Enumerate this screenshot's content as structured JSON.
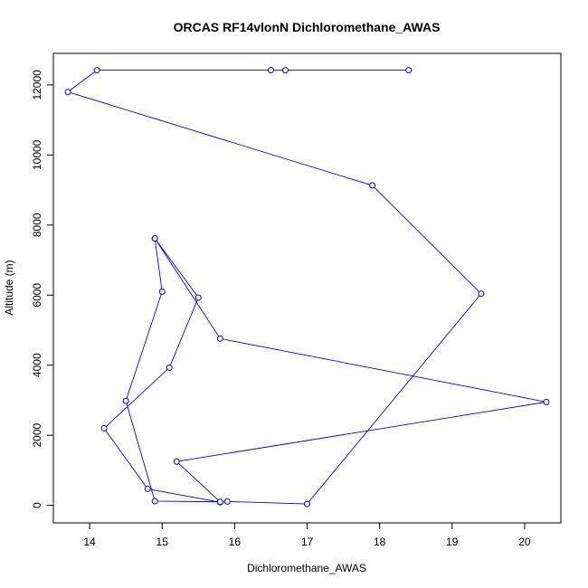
{
  "chart_data": {
    "type": "line",
    "title": "ORCAS RF14vlonN Dichloromethane_AWAS",
    "xlabel": "Dichloromethane_AWAS",
    "ylabel": "Altitude (m)",
    "xlim": [
      13.5,
      20.5
    ],
    "ylim": [
      -500,
      12900
    ],
    "xticks": [
      14,
      15,
      16,
      17,
      18,
      19,
      20
    ],
    "yticks": [
      0,
      2000,
      4000,
      6000,
      8000,
      10000,
      12000
    ],
    "series": [
      {
        "color": "#0000ff",
        "points": [
          [
            18.4,
            12420
          ],
          [
            16.7,
            12420
          ],
          [
            16.5,
            12420
          ],
          [
            14.1,
            12420
          ],
          [
            13.7,
            11800
          ],
          [
            17.9,
            9130
          ],
          [
            19.4,
            6040
          ],
          [
            17.0,
            40
          ],
          [
            15.9,
            110
          ],
          [
            15.8,
            90
          ],
          [
            14.8,
            470
          ],
          [
            14.2,
            2200
          ],
          [
            15.1,
            3930
          ],
          [
            15.5,
            5930
          ],
          [
            14.9,
            7620
          ],
          [
            15.0,
            6100
          ],
          [
            14.5,
            2980
          ],
          [
            14.9,
            120
          ],
          [
            15.8,
            100
          ],
          [
            15.2,
            1250
          ],
          [
            20.3,
            2950
          ],
          [
            15.8,
            4760
          ],
          [
            14.9,
            7620
          ]
        ]
      }
    ]
  }
}
